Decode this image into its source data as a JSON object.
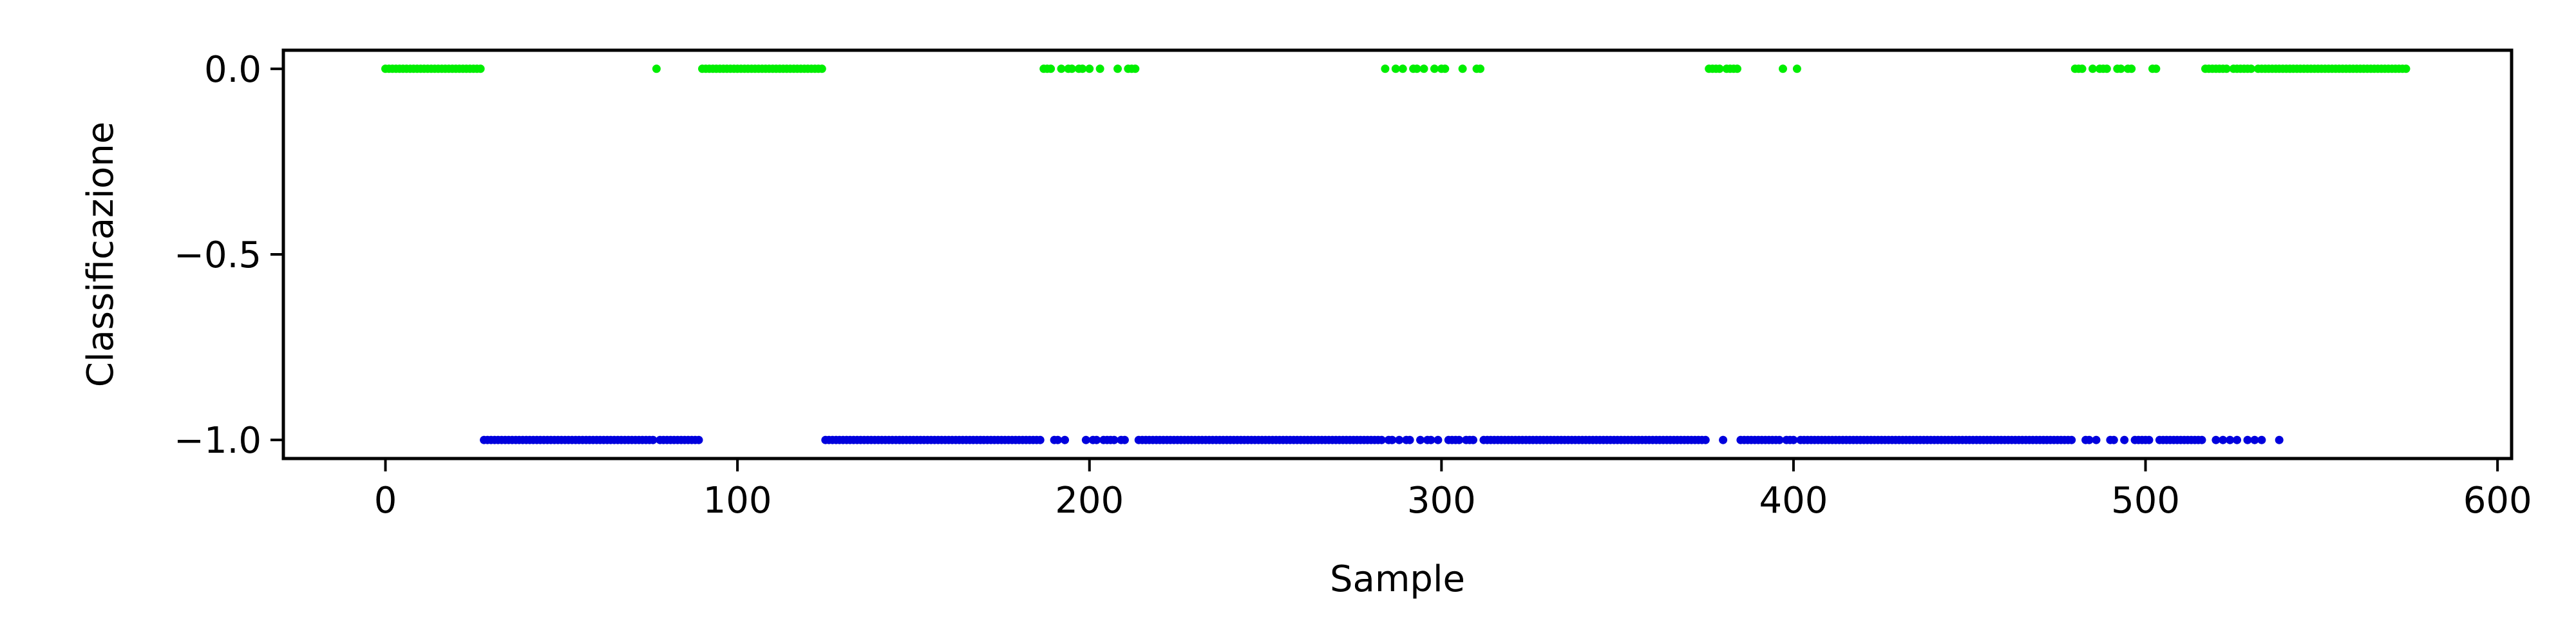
{
  "chart_data": {
    "type": "scatter",
    "title": "",
    "xlabel": "Sample",
    "ylabel": "Classificazione",
    "xlim": [
      -29,
      604
    ],
    "ylim": [
      -1.05,
      0.05
    ],
    "x_ticks": [
      0,
      100,
      200,
      300,
      400,
      500,
      600
    ],
    "x_tick_labels": [
      "0",
      "100",
      "200",
      "300",
      "400",
      "500",
      "600"
    ],
    "y_ticks": [
      0.0,
      -0.5,
      -1.0
    ],
    "y_tick_labels": [
      "0.0",
      "−0.5",
      "−1.0"
    ],
    "grid": false,
    "series": [
      {
        "color": "#00ee00",
        "y": 0.0,
        "x": [
          0,
          1,
          2,
          3,
          4,
          5,
          6,
          7,
          8,
          9,
          10,
          11,
          12,
          13,
          14,
          15,
          16,
          17,
          18,
          19,
          20,
          21,
          22,
          23,
          24,
          25,
          26,
          27,
          77,
          90,
          91,
          92,
          93,
          94,
          95,
          96,
          97,
          98,
          99,
          100,
          101,
          102,
          103,
          104,
          105,
          106,
          107,
          108,
          109,
          110,
          111,
          112,
          113,
          114,
          115,
          116,
          117,
          118,
          119,
          120,
          121,
          122,
          123,
          124,
          187,
          188,
          189,
          192,
          194,
          195,
          197,
          198,
          200,
          203,
          208,
          211,
          212,
          213,
          284,
          287,
          289,
          292,
          293,
          295,
          298,
          300,
          301,
          306,
          310,
          311,
          376,
          377,
          378,
          379,
          381,
          382,
          383,
          384,
          397,
          401,
          480,
          481,
          482,
          485,
          487,
          488,
          489,
          492,
          493,
          495,
          496,
          502,
          503,
          517,
          518,
          519,
          520,
          521,
          522,
          523,
          525,
          526,
          527,
          528,
          529,
          530,
          532,
          533,
          534,
          535,
          536,
          537,
          538,
          539,
          540,
          541,
          542,
          543,
          544,
          545,
          546,
          547,
          548,
          549,
          550,
          551,
          552,
          553,
          554,
          555,
          556,
          557,
          558,
          559,
          560,
          561,
          562,
          563,
          564,
          565,
          566,
          567,
          568,
          569,
          570,
          571,
          572,
          573,
          574
        ]
      },
      {
        "color": "#0000dd",
        "y": -1.0,
        "x": [
          28,
          29,
          30,
          31,
          32,
          33,
          34,
          35,
          36,
          37,
          38,
          39,
          40,
          41,
          42,
          43,
          44,
          45,
          46,
          47,
          48,
          49,
          50,
          51,
          52,
          53,
          54,
          55,
          56,
          57,
          58,
          59,
          60,
          61,
          62,
          63,
          64,
          65,
          66,
          67,
          68,
          69,
          70,
          71,
          72,
          73,
          74,
          75,
          76,
          78,
          79,
          80,
          81,
          82,
          83,
          84,
          85,
          86,
          87,
          88,
          89,
          125,
          126,
          127,
          128,
          129,
          130,
          131,
          132,
          133,
          134,
          135,
          136,
          137,
          138,
          139,
          140,
          141,
          142,
          143,
          144,
          145,
          146,
          147,
          148,
          149,
          150,
          151,
          152,
          153,
          154,
          155,
          156,
          157,
          158,
          159,
          160,
          161,
          162,
          163,
          164,
          165,
          166,
          167,
          168,
          169,
          170,
          171,
          172,
          173,
          174,
          175,
          176,
          177,
          178,
          179,
          180,
          181,
          182,
          183,
          184,
          185,
          186,
          190,
          191,
          193,
          199,
          201,
          202,
          204,
          205,
          206,
          207,
          209,
          210,
          214,
          215,
          216,
          217,
          218,
          219,
          220,
          221,
          222,
          223,
          224,
          225,
          226,
          227,
          228,
          229,
          230,
          231,
          232,
          233,
          234,
          235,
          236,
          237,
          238,
          239,
          240,
          241,
          242,
          243,
          244,
          245,
          246,
          247,
          248,
          249,
          250,
          251,
          252,
          253,
          254,
          255,
          256,
          257,
          258,
          259,
          260,
          261,
          262,
          263,
          264,
          265,
          266,
          267,
          268,
          269,
          270,
          271,
          272,
          273,
          274,
          275,
          276,
          277,
          278,
          279,
          280,
          281,
          282,
          283,
          285,
          286,
          288,
          290,
          291,
          294,
          296,
          297,
          299,
          302,
          303,
          304,
          305,
          307,
          308,
          309,
          312,
          313,
          314,
          315,
          316,
          317,
          318,
          319,
          320,
          321,
          322,
          323,
          324,
          325,
          326,
          327,
          328,
          329,
          330,
          331,
          332,
          333,
          334,
          335,
          336,
          337,
          338,
          339,
          340,
          341,
          342,
          343,
          344,
          345,
          346,
          347,
          348,
          349,
          350,
          351,
          352,
          353,
          354,
          355,
          356,
          357,
          358,
          359,
          360,
          361,
          362,
          363,
          364,
          365,
          366,
          367,
          368,
          369,
          370,
          371,
          372,
          373,
          374,
          375,
          380,
          385,
          386,
          387,
          388,
          389,
          390,
          391,
          392,
          393,
          394,
          395,
          396,
          398,
          399,
          400,
          402,
          403,
          404,
          405,
          406,
          407,
          408,
          409,
          410,
          411,
          412,
          413,
          414,
          415,
          416,
          417,
          418,
          419,
          420,
          421,
          422,
          423,
          424,
          425,
          426,
          427,
          428,
          429,
          430,
          431,
          432,
          433,
          434,
          435,
          436,
          437,
          438,
          439,
          440,
          441,
          442,
          443,
          444,
          445,
          446,
          447,
          448,
          449,
          450,
          451,
          452,
          453,
          454,
          455,
          456,
          457,
          458,
          459,
          460,
          461,
          462,
          463,
          464,
          465,
          466,
          467,
          468,
          469,
          470,
          471,
          472,
          473,
          474,
          475,
          476,
          477,
          478,
          479,
          483,
          484,
          486,
          490,
          491,
          494,
          497,
          498,
          499,
          500,
          501,
          504,
          505,
          506,
          507,
          508,
          509,
          510,
          511,
          512,
          513,
          514,
          515,
          516,
          524,
          531,
          520,
          522,
          526,
          529,
          533,
          538
        ]
      }
    ]
  }
}
